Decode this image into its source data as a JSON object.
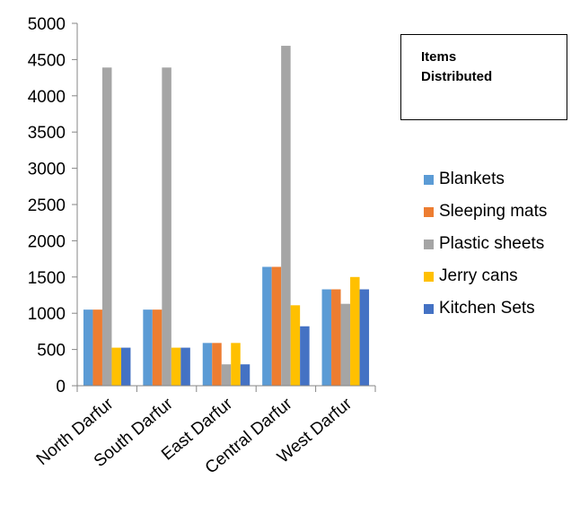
{
  "chart_data": {
    "type": "bar",
    "title_lines": [
      "Items",
      "Distributed"
    ],
    "categories": [
      "North Darfur",
      "South Darfur",
      "East Darfur",
      "Central Darfur",
      "West Darfur"
    ],
    "series": [
      {
        "name": "Blankets",
        "color": "#5B9BD5",
        "values": [
          1050,
          1050,
          590,
          1640,
          1330
        ]
      },
      {
        "name": "Sleeping mats",
        "color": "#ED7D31",
        "values": [
          1050,
          1050,
          590,
          1640,
          1330
        ]
      },
      {
        "name": "Plastic sheets",
        "color": "#A5A5A5",
        "values": [
          4390,
          4390,
          295,
          4690,
          1130
        ]
      },
      {
        "name": "Jerry cans",
        "color": "#FFC000",
        "values": [
          525,
          525,
          590,
          1110,
          1500
        ]
      },
      {
        "name": "Kitchen Sets",
        "color": "#4472C4",
        "values": [
          525,
          525,
          295,
          820,
          1330
        ]
      }
    ],
    "y_ticks": [
      "0",
      "500",
      "1000",
      "1500",
      "2000",
      "2500",
      "3000",
      "3500",
      "4000",
      "4500",
      "5000"
    ],
    "ylim": [
      0,
      5000
    ],
    "grid": false,
    "legend_position": "right"
  }
}
